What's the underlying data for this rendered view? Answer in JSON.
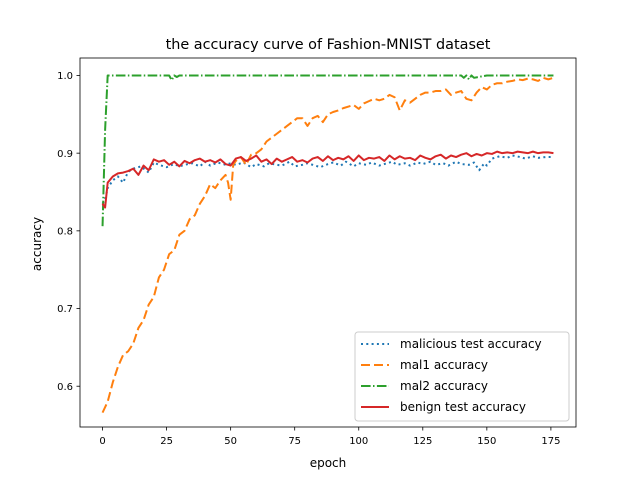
{
  "chart_data": {
    "type": "line",
    "title": "the accuracy curve of Fashion-MNIST dataset",
    "xlabel": "epoch",
    "ylabel": "accuracy",
    "xlim": [
      -8.8,
      184.8
    ],
    "ylim": [
      0.5475,
      1.0225
    ],
    "xticks": [
      0,
      25,
      50,
      75,
      100,
      125,
      150,
      175
    ],
    "xtick_labels": [
      "0",
      "25",
      "50",
      "75",
      "100",
      "125",
      "150",
      "175"
    ],
    "yticks": [
      0.6,
      0.7,
      0.8,
      0.9,
      1.0
    ],
    "ytick_labels": [
      "0.6",
      "0.7",
      "0.8",
      "0.9",
      "1.0"
    ],
    "grid": false,
    "legend_position": "bottom-right",
    "series": [
      {
        "name": "malicious test accuracy",
        "color": "#1f77b4",
        "style": "dotted",
        "x": [
          0,
          1,
          2,
          4,
          6,
          8,
          10,
          12,
          15,
          18,
          20,
          22,
          25,
          28,
          30,
          32,
          35,
          38,
          40,
          42,
          45,
          48,
          50,
          52,
          55,
          58,
          60,
          63,
          65,
          68,
          70,
          73,
          75,
          78,
          80,
          83,
          85,
          88,
          90,
          93,
          95,
          98,
          100,
          103,
          105,
          108,
          110,
          113,
          115,
          118,
          120,
          123,
          125,
          128,
          130,
          133,
          135,
          138,
          140,
          143,
          145,
          147,
          149,
          150,
          152,
          155,
          158,
          160,
          163,
          165,
          168,
          170,
          173,
          175
        ],
        "y": [
          0.835,
          0.84,
          0.855,
          0.865,
          0.87,
          0.862,
          0.876,
          0.88,
          0.883,
          0.875,
          0.888,
          0.885,
          0.882,
          0.886,
          0.883,
          0.885,
          0.887,
          0.883,
          0.889,
          0.884,
          0.888,
          0.885,
          0.887,
          0.885,
          0.888,
          0.882,
          0.886,
          0.883,
          0.887,
          0.885,
          0.884,
          0.889,
          0.883,
          0.885,
          0.887,
          0.884,
          0.882,
          0.886,
          0.888,
          0.884,
          0.889,
          0.883,
          0.887,
          0.885,
          0.888,
          0.884,
          0.886,
          0.889,
          0.885,
          0.887,
          0.884,
          0.888,
          0.886,
          0.889,
          0.885,
          0.887,
          0.884,
          0.889,
          0.886,
          0.885,
          0.888,
          0.878,
          0.887,
          0.884,
          0.893,
          0.896,
          0.894,
          0.897,
          0.895,
          0.893,
          0.896,
          0.894,
          0.895,
          0.895
        ]
      },
      {
        "name": "mal1 accuracy",
        "color": "#ff7f0e",
        "style": "dashed",
        "x": [
          0,
          2,
          4,
          6,
          8,
          10,
          12,
          14,
          16,
          18,
          20,
          22,
          24,
          26,
          28,
          30,
          32,
          34,
          36,
          38,
          40,
          42,
          44,
          46,
          48,
          49,
          50,
          51,
          52,
          54,
          56,
          58,
          60,
          62,
          64,
          66,
          68,
          70,
          72,
          74,
          76,
          78,
          80,
          82,
          84,
          86,
          88,
          90,
          92,
          94,
          96,
          98,
          100,
          102,
          104,
          106,
          108,
          110,
          112,
          114,
          116,
          118,
          120,
          122,
          124,
          126,
          128,
          130,
          132,
          134,
          136,
          138,
          140,
          142,
          144,
          146,
          148,
          150,
          152,
          154,
          156,
          158,
          160,
          162,
          164,
          166,
          168,
          170,
          172,
          174,
          176
        ],
        "y": [
          0.566,
          0.58,
          0.605,
          0.625,
          0.64,
          0.645,
          0.655,
          0.675,
          0.685,
          0.705,
          0.715,
          0.74,
          0.75,
          0.77,
          0.775,
          0.795,
          0.8,
          0.815,
          0.82,
          0.835,
          0.845,
          0.86,
          0.855,
          0.865,
          0.872,
          0.862,
          0.84,
          0.885,
          0.89,
          0.895,
          0.885,
          0.898,
          0.9,
          0.905,
          0.915,
          0.92,
          0.925,
          0.93,
          0.935,
          0.94,
          0.945,
          0.945,
          0.935,
          0.945,
          0.948,
          0.94,
          0.95,
          0.953,
          0.955,
          0.958,
          0.96,
          0.962,
          0.957,
          0.964,
          0.967,
          0.97,
          0.968,
          0.97,
          0.975,
          0.972,
          0.955,
          0.968,
          0.965,
          0.97,
          0.975,
          0.978,
          0.978,
          0.98,
          0.98,
          0.982,
          0.975,
          0.978,
          0.98,
          0.97,
          0.968,
          0.978,
          0.985,
          0.982,
          0.988,
          0.99,
          0.99,
          0.992,
          0.993,
          0.995,
          0.994,
          0.996,
          0.995,
          0.993,
          0.997,
          0.995,
          0.997
        ]
      },
      {
        "name": "mal2 accuracy",
        "color": "#2ca02c",
        "style": "dashdot",
        "x": [
          0,
          1,
          2,
          3,
          5,
          10,
          20,
          26,
          27,
          28,
          29,
          30,
          40,
          60,
          80,
          100,
          120,
          140,
          141,
          142,
          143,
          144,
          145,
          150,
          160,
          170,
          176
        ],
        "y": [
          0.806,
          0.93,
          1.0,
          1.0,
          1.0,
          1.0,
          1.0,
          1.0,
          0.994,
          1.0,
          0.998,
          1.0,
          1.0,
          1.0,
          1.0,
          1.0,
          1.0,
          1.0,
          0.997,
          1.0,
          0.995,
          1.0,
          0.997,
          1.0,
          1.0,
          1.0,
          1.0
        ]
      },
      {
        "name": "benign test accuracy",
        "color": "#d62728",
        "style": "solid",
        "x": [
          0,
          1,
          2,
          4,
          6,
          8,
          10,
          12,
          14,
          16,
          18,
          20,
          22,
          24,
          26,
          28,
          30,
          32,
          34,
          36,
          38,
          40,
          42,
          44,
          46,
          48,
          50,
          52,
          54,
          56,
          58,
          60,
          62,
          64,
          66,
          68,
          70,
          72,
          74,
          76,
          78,
          80,
          82,
          84,
          86,
          88,
          90,
          92,
          94,
          96,
          98,
          100,
          102,
          104,
          106,
          108,
          110,
          112,
          114,
          116,
          118,
          120,
          122,
          124,
          126,
          128,
          130,
          132,
          134,
          136,
          138,
          140,
          142,
          144,
          146,
          148,
          150,
          152,
          154,
          156,
          158,
          160,
          162,
          164,
          166,
          168,
          170,
          172,
          174,
          176
        ],
        "y": [
          0.835,
          0.83,
          0.862,
          0.87,
          0.874,
          0.875,
          0.877,
          0.88,
          0.872,
          0.884,
          0.878,
          0.892,
          0.889,
          0.891,
          0.885,
          0.889,
          0.883,
          0.89,
          0.887,
          0.891,
          0.893,
          0.889,
          0.891,
          0.888,
          0.892,
          0.886,
          0.884,
          0.893,
          0.895,
          0.89,
          0.893,
          0.897,
          0.889,
          0.892,
          0.886,
          0.893,
          0.889,
          0.892,
          0.895,
          0.889,
          0.891,
          0.888,
          0.893,
          0.895,
          0.89,
          0.896,
          0.891,
          0.894,
          0.892,
          0.896,
          0.89,
          0.897,
          0.891,
          0.894,
          0.893,
          0.895,
          0.89,
          0.897,
          0.892,
          0.896,
          0.893,
          0.894,
          0.891,
          0.897,
          0.894,
          0.892,
          0.896,
          0.898,
          0.893,
          0.897,
          0.895,
          0.898,
          0.9,
          0.896,
          0.899,
          0.897,
          0.9,
          0.899,
          0.902,
          0.9,
          0.901,
          0.9,
          0.902,
          0.901,
          0.9,
          0.902,
          0.9,
          0.901,
          0.901,
          0.9
        ]
      }
    ]
  }
}
